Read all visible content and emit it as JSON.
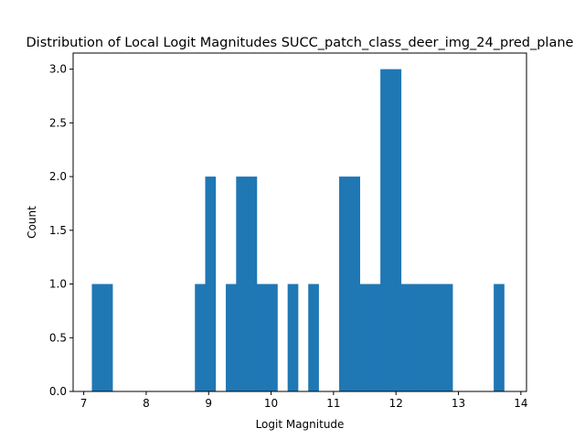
{
  "chart_data": {
    "type": "bar",
    "title": "Distribution of Local Logit Magnitudes SUCC_patch_class_deer_img_24_pred_plane",
    "xlabel": "Logit Magnitude",
    "ylabel": "Count",
    "xlim": [
      6.83,
      14.09
    ],
    "ylim": [
      0,
      3.15
    ],
    "xticks": [
      7,
      8,
      9,
      10,
      11,
      12,
      13,
      14
    ],
    "yticks": [
      0.0,
      0.5,
      1.0,
      1.5,
      2.0,
      2.5,
      3.0
    ],
    "xtick_labels": [
      "7",
      "8",
      "9",
      "10",
      "11",
      "12",
      "13",
      "14"
    ],
    "ytick_labels": [
      "0.0",
      "0.5",
      "1.0",
      "1.5",
      "2.0",
      "2.5",
      "3.0"
    ],
    "bin_width": 0.165,
    "bins": [
      {
        "x0": 7.13,
        "x1": 7.295,
        "count": 1
      },
      {
        "x0": 7.295,
        "x1": 7.46,
        "count": 1
      },
      {
        "x0": 8.78,
        "x1": 8.945,
        "count": 1
      },
      {
        "x0": 8.945,
        "x1": 9.11,
        "count": 2
      },
      {
        "x0": 9.275,
        "x1": 9.44,
        "count": 1
      },
      {
        "x0": 9.44,
        "x1": 9.605,
        "count": 2
      },
      {
        "x0": 9.605,
        "x1": 9.77,
        "count": 2
      },
      {
        "x0": 9.77,
        "x1": 9.935,
        "count": 1
      },
      {
        "x0": 9.935,
        "x1": 10.1,
        "count": 1
      },
      {
        "x0": 10.265,
        "x1": 10.43,
        "count": 1
      },
      {
        "x0": 10.595,
        "x1": 10.76,
        "count": 1
      },
      {
        "x0": 11.09,
        "x1": 11.255,
        "count": 2
      },
      {
        "x0": 11.255,
        "x1": 11.42,
        "count": 2
      },
      {
        "x0": 11.42,
        "x1": 11.585,
        "count": 1
      },
      {
        "x0": 11.585,
        "x1": 11.75,
        "count": 1
      },
      {
        "x0": 11.75,
        "x1": 11.915,
        "count": 3
      },
      {
        "x0": 11.915,
        "x1": 12.08,
        "count": 3
      },
      {
        "x0": 12.08,
        "x1": 12.245,
        "count": 1
      },
      {
        "x0": 12.245,
        "x1": 12.41,
        "count": 1
      },
      {
        "x0": 12.41,
        "x1": 12.575,
        "count": 1
      },
      {
        "x0": 12.575,
        "x1": 12.74,
        "count": 1
      },
      {
        "x0": 12.74,
        "x1": 12.905,
        "count": 1
      },
      {
        "x0": 13.565,
        "x1": 13.73,
        "count": 1
      }
    ],
    "bar_color": "#1f77b4",
    "grid": false,
    "legend": "none"
  }
}
